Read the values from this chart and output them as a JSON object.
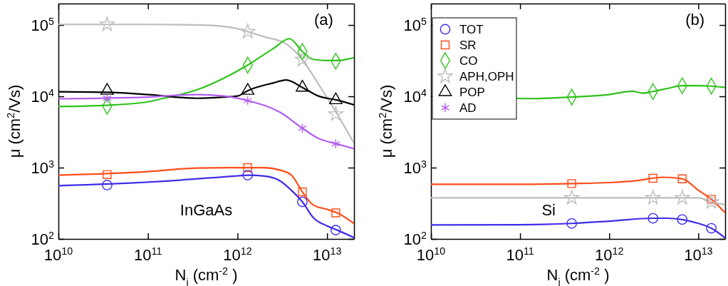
{
  "chart_data": [
    {
      "type": "line",
      "log": "xy",
      "xlim": [
        10000000000.0,
        20000000000000.0
      ],
      "ylim": [
        100,
        200000
      ],
      "xticks": [
        {
          "value": 10000000000.0,
          "label": "10$^{10}$"
        },
        {
          "value": 100000000000.0,
          "label": "10$^{11}$"
        },
        {
          "value": 1000000000000.0,
          "label": "10$^{12}$"
        },
        {
          "value": 10000000000000.0,
          "label": "10$^{13}$"
        }
      ],
      "yticks": [
        {
          "value": 100,
          "label": "10$^{2}$"
        },
        {
          "value": 1000,
          "label": "10$^{3}$"
        },
        {
          "value": 10000,
          "label": "10$^{4}$"
        },
        {
          "value": 100000,
          "label": "10$^{5}$"
        }
      ],
      "xlabel": "N$_{i}$ (cm$^{-2}$ )",
      "ylabel": "μ (cm$^{2}$/Vs)",
      "annotations": [
        "(a)",
        "InGaAs"
      ],
      "series": [
        {
          "color": "#bdbdbd",
          "x": [
            10000000000.0,
            100000000000.0,
            400000000000.0,
            1000000000000.0,
            1300000000000.0,
            2000000000000.0,
            3500000000000.0,
            5300000000000.0,
            8000000000000.0,
            13000000000000.0,
            20000000000000.0
          ],
          "values": [
            102000,
            102000,
            100000,
            89000,
            80800,
            68300,
            54300,
            32600,
            14900,
            5620,
            2200
          ]
        },
        {
          "color": "#2ec21a",
          "x": [
            10000000000.0,
            35000000000.0,
            100000000000.0,
            150000000000.0,
            350000000000.0,
            700000000000.0,
            1300000000000.0,
            2500000000000.0,
            3800000000000.0,
            5300000000000.0,
            7000000000000.0,
            10000000000000.0,
            13000000000000.0,
            20000000000000.0
          ],
          "values": [
            7200,
            7500,
            8380,
            9400,
            12300,
            17900,
            27400,
            46700,
            64300,
            42500,
            33000,
            31800,
            31800,
            34900
          ]
        },
        {
          "color": "#000000",
          "x": [
            10000000000.0,
            35000000000.0,
            100000000000.0,
            350000000000.0,
            700000000000.0,
            1000000000000.0,
            1300000000000.0,
            2500000000000.0,
            3500000000000.0,
            5300000000000.0,
            8000000000000.0,
            13000000000000.0,
            20000000000000.0
          ],
          "values": [
            11600,
            11400,
            10600,
            9400,
            9750,
            10100,
            12000,
            15400,
            17000,
            13300,
            10100,
            8840,
            7600
          ]
        },
        {
          "color": "#b25ef0",
          "x": [
            10000000000.0,
            100000000000.0,
            350000000000.0,
            700000000000.0,
            1300000000000.0,
            3000000000000.0,
            5300000000000.0,
            8000000000000.0,
            13000000000000.0,
            20000000000000.0
          ],
          "values": [
            9240,
            9750,
            10600,
            10100,
            8700,
            5960,
            3570,
            2570,
            2150,
            1840
          ]
        },
        {
          "color": "#ff4d1a",
          "x": [
            10000000000.0,
            100000000000.0,
            350000000000.0,
            1000000000000.0,
            2000000000000.0,
            3000000000000.0,
            4000000000000.0,
            5300000000000.0,
            7000000000000.0,
            10000000000000.0,
            13000000000000.0,
            20000000000000.0
          ],
          "values": [
            785,
            880,
            988,
            1000,
            1000,
            920,
            785,
            457,
            300,
            260,
            232,
            165
          ]
        },
        {
          "color": "#3f2ee8",
          "x": [
            10000000000.0,
            100000000000.0,
            1000000000000.0,
            1300000000000.0,
            2000000000000.0,
            3000000000000.0,
            4000000000000.0,
            5300000000000.0,
            7000000000000.0,
            10000000000000.0,
            13000000000000.0,
            20000000000000.0
          ],
          "values": [
            557,
            625,
            767,
            785,
            760,
            650,
            480,
            331,
            200,
            152,
            133,
            104
          ]
        },
        {
          "type": "scatter",
          "marker": "star",
          "color": "#bdbdbd",
          "x": [
            35000000000.0,
            1300000000000.0,
            5300000000000.0,
            12500000000000.0
          ],
          "values": [
            102000,
            80800,
            32600,
            5620
          ]
        },
        {
          "type": "scatter",
          "marker": "diamond",
          "color": "#2ec21a",
          "x": [
            35000000000.0,
            1300000000000.0,
            5300000000000.0,
            12500000000000.0
          ],
          "values": [
            7300,
            27400,
            42500,
            31100
          ]
        },
        {
          "type": "scatter",
          "marker": "triangle",
          "color": "#000000",
          "x": [
            35000000000.0,
            1300000000000.0,
            5300000000000.0,
            12500000000000.0
          ],
          "values": [
            12000,
            12000,
            13300,
            8840
          ]
        },
        {
          "type": "scatter",
          "marker": "cross",
          "color": "#b25ef0",
          "x": [
            35000000000.0,
            1300000000000.0,
            5300000000000.0,
            12500000000000.0
          ],
          "values": [
            9400,
            8700,
            3570,
            2150
          ]
        },
        {
          "type": "scatter",
          "marker": "square",
          "color": "#ff4d1a",
          "x": [
            35000000000.0,
            1300000000000.0,
            5300000000000.0,
            12500000000000.0
          ],
          "values": [
            798,
            1000,
            457,
            232
          ]
        },
        {
          "type": "scatter",
          "marker": "circle",
          "color": "#3f2ee8",
          "x": [
            35000000000.0,
            1300000000000.0,
            5300000000000.0,
            12500000000000.0
          ],
          "values": [
            570,
            785,
            331,
            133
          ]
        }
      ]
    },
    {
      "type": "line",
      "log": "xy",
      "xlim": [
        10000000000.0,
        20000000000000.0
      ],
      "ylim": [
        100,
        200000
      ],
      "legend": "top left",
      "xticks": [
        {
          "value": 10000000000.0,
          "label": "10$^{10}$"
        },
        {
          "value": 100000000000.0,
          "label": "10$^{11}$"
        },
        {
          "value": 1000000000000.0,
          "label": "10$^{12}$"
        },
        {
          "value": 10000000000000.0,
          "label": "10$^{13}$"
        }
      ],
      "yticks": [
        {
          "value": 100,
          "label": "10$^{2}$"
        },
        {
          "value": 1000,
          "label": "10$^{3}$"
        },
        {
          "value": 10000,
          "label": "10$^{4}$"
        },
        {
          "value": 100000,
          "label": "10$^{5}$"
        }
      ],
      "xlabel": "N$_{i}$ (cm$^{-2}$ )",
      "ylabel": "μ (cm$^{2}$/Vs)",
      "annotations": [
        "(b)",
        "Si"
      ],
      "series": [
        {
          "color": "#2ec21a",
          "x": [
            90000000000.0,
            120000000000.0,
            380000000000.0,
            1000000000000.0,
            1800000000000.0,
            2400000000000.0,
            3100000000000.0,
            4500000000000.0,
            6600000000000.0,
            10000000000000.0,
            14000000000000.0,
            20000000000000.0
          ],
          "values": [
            9400,
            9290,
            9770,
            10600,
            11800,
            11100,
            11700,
            12900,
            14100,
            14100,
            13900,
            13300
          ]
        },
        {
          "color": "#ff4d1a",
          "x": [
            10000000000.0,
            100000000000.0,
            380000000000.0,
            1000000000000.0,
            2000000000000.0,
            4000000000000.0,
            6600000000000.0,
            10000000000000.0,
            14000000000000.0,
            20000000000000.0
          ],
          "values": [
            585,
            585,
            598,
            617,
            654,
            733,
            697,
            483,
            360,
            233
          ]
        },
        {
          "color": "#bdbdbd",
          "x": [
            10000000000.0,
            100000000000.0,
            1000000000000.0,
            10000000000000.0,
            14000000000000.0,
            20000000000000.0
          ],
          "values": [
            377,
            377,
            377,
            377,
            329,
            303
          ]
        },
        {
          "color": "#3f2ee8",
          "x": [
            10000000000.0,
            100000000000.0,
            380000000000.0,
            1000000000000.0,
            3100000000000.0,
            4500000000000.0,
            6600000000000.0,
            10000000000000.0,
            14000000000000.0,
            20000000000000.0
          ],
          "values": [
            157,
            158,
            165,
            177,
            195,
            195,
            187,
            165,
            141,
            103
          ]
        },
        {
          "type": "scatter",
          "name": "TOT",
          "marker": "circle",
          "color": "#3f2ee8",
          "x": [
            380000000000.0,
            3100000000000.0,
            6600000000000.0,
            14000000000000.0
          ],
          "values": [
            165,
            195,
            187,
            141
          ]
        },
        {
          "type": "scatter",
          "name": "SR",
          "marker": "square",
          "color": "#ff4d1a",
          "x": [
            380000000000.0,
            3100000000000.0,
            6600000000000.0,
            14000000000000.0
          ],
          "values": [
            598,
            708,
            697,
            360
          ]
        },
        {
          "type": "scatter",
          "name": "CO",
          "marker": "diamond",
          "color": "#2ec21a",
          "x": [
            380000000000.0,
            3100000000000.0,
            6600000000000.0,
            14000000000000.0
          ],
          "values": [
            9770,
            11700,
            14100,
            13900
          ]
        },
        {
          "type": "scatter",
          "name": "APH,OPH",
          "marker": "star",
          "color": "#bdbdbd",
          "x": [
            380000000000.0,
            3100000000000.0,
            6600000000000.0,
            14000000000000.0
          ],
          "values": [
            377,
            377,
            377,
            329
          ]
        },
        {
          "type": "scatter",
          "name": "POP",
          "marker": "triangle",
          "color": "#000000"
        },
        {
          "type": "scatter",
          "name": "AD",
          "marker": "cross",
          "color": "#b25ef0"
        }
      ]
    }
  ]
}
